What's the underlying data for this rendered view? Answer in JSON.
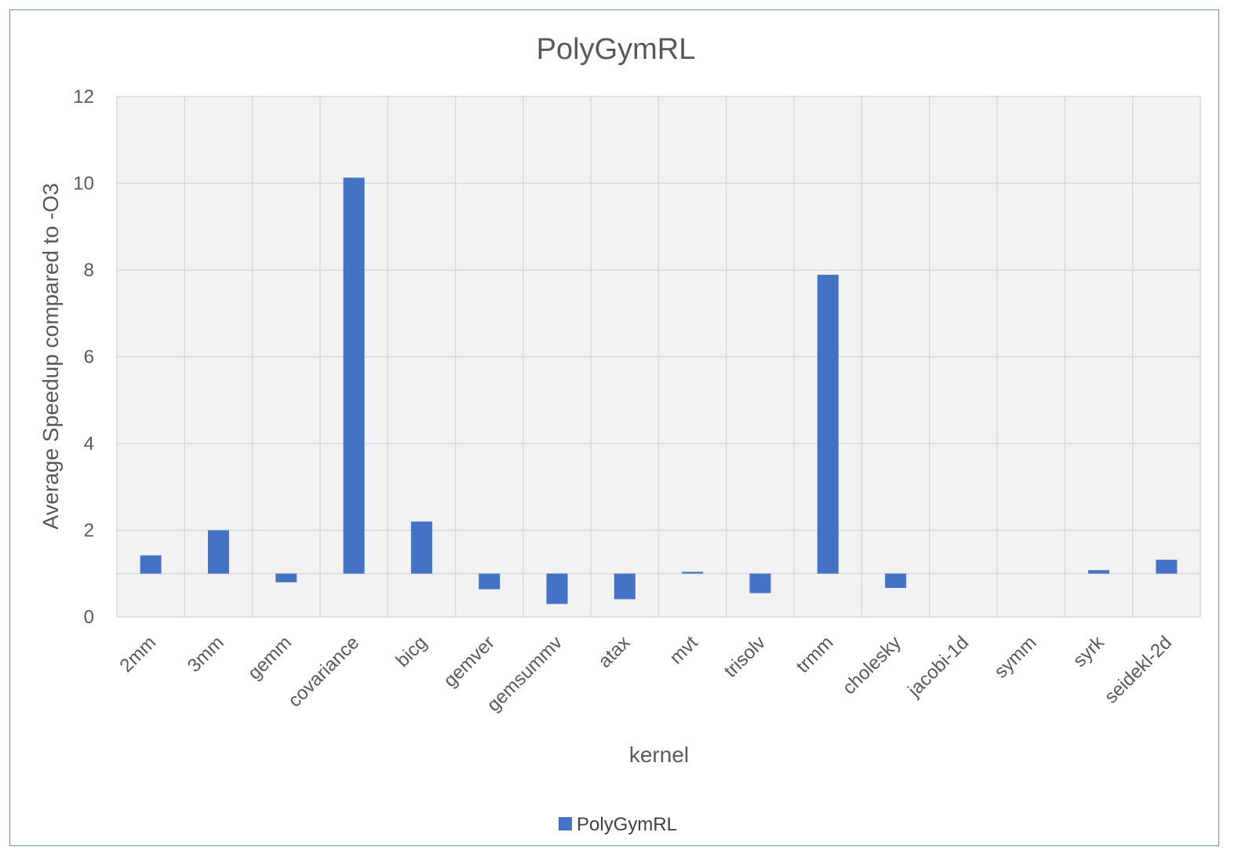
{
  "chart_data": {
    "type": "bar",
    "title": "PolyGymRL",
    "xlabel": "kernel",
    "ylabel": "Average Speedup compared to -O3",
    "categories": [
      "2mm",
      "3mm",
      "gemm",
      "covariance",
      "bicg",
      "gemver",
      "gemsummv",
      "atax",
      "mvt",
      "trisolv",
      "trmm",
      "cholesky",
      "jacobi-1d",
      "symm",
      "syrk",
      "seidekl-2d"
    ],
    "series": [
      {
        "name": "PolyGymRL",
        "values": [
          1.42,
          2.0,
          0.8,
          10.13,
          2.2,
          0.64,
          0.3,
          0.41,
          1.04,
          0.55,
          7.89,
          0.67,
          1.0,
          1.0,
          1.08,
          1.32
        ]
      }
    ],
    "baseline": 1,
    "ylim": [
      0,
      12
    ],
    "yticks": [
      0,
      2,
      4,
      6,
      8,
      10,
      12
    ],
    "grid": true,
    "legend_position": "bottom",
    "colors": {
      "bar": "#4472c4",
      "plot_background": "#f2f2f2",
      "grid": "#d9d9d9",
      "text": "#595959",
      "frame": "#6b8bb5"
    }
  }
}
